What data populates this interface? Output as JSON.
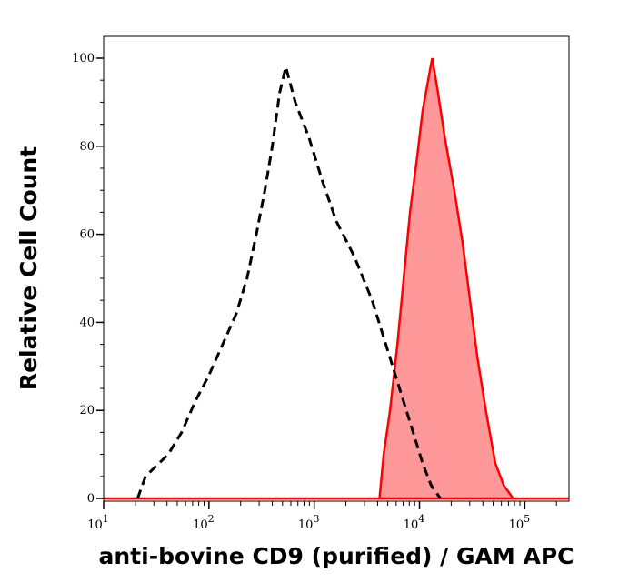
{
  "chart_data": {
    "type": "area",
    "title": "",
    "xlabel": "anti-bovine CD9 (purified) / GAM APC",
    "ylabel": "Relative Cell Count",
    "xscale": "log",
    "xlim": [
      10,
      263000
    ],
    "ylim": [
      0,
      105
    ],
    "xticks": [
      10,
      100,
      1000,
      10000,
      100000
    ],
    "xtick_labels": [
      {
        "base": "10",
        "exp": "1"
      },
      {
        "base": "10",
        "exp": "2"
      },
      {
        "base": "10",
        "exp": "3"
      },
      {
        "base": "10",
        "exp": "4"
      },
      {
        "base": "10",
        "exp": "5"
      }
    ],
    "yticks": [
      0,
      20,
      40,
      60,
      80,
      100
    ],
    "ytick_labels": [
      "0",
      "20",
      "40",
      "60",
      "80",
      "100"
    ],
    "grid": false,
    "series": [
      {
        "style": "dashed-line",
        "color": "#000000",
        "x": [
          21,
          25,
          41,
          55,
          74,
          100,
          135,
          182,
          230,
          282,
          340,
          400,
          468,
          537,
          661,
          891,
          1200,
          1620,
          2400,
          3550,
          4790,
          6460,
          8710,
          10700,
          12900,
          15800
        ],
        "y": [
          0,
          5,
          10,
          15,
          22,
          28,
          35,
          42,
          50,
          60,
          70,
          80,
          92,
          98,
          90,
          82,
          72,
          63,
          55,
          45,
          35,
          25,
          15,
          8,
          3,
          0
        ]
      },
      {
        "style": "filled",
        "color": "#ff0000",
        "fill": "#ff9999",
        "x": [
          4170,
          4570,
          5250,
          6170,
          7080,
          8130,
          9550,
          10700,
          12300,
          13200,
          14800,
          17400,
          21400,
          25700,
          30200,
          35500,
          42700,
          52500,
          63100,
          77600
        ],
        "y": [
          0,
          10,
          20,
          35,
          50,
          65,
          78,
          88,
          96,
          100,
          93,
          82,
          70,
          58,
          45,
          32,
          20,
          8,
          3,
          0
        ]
      }
    ]
  }
}
